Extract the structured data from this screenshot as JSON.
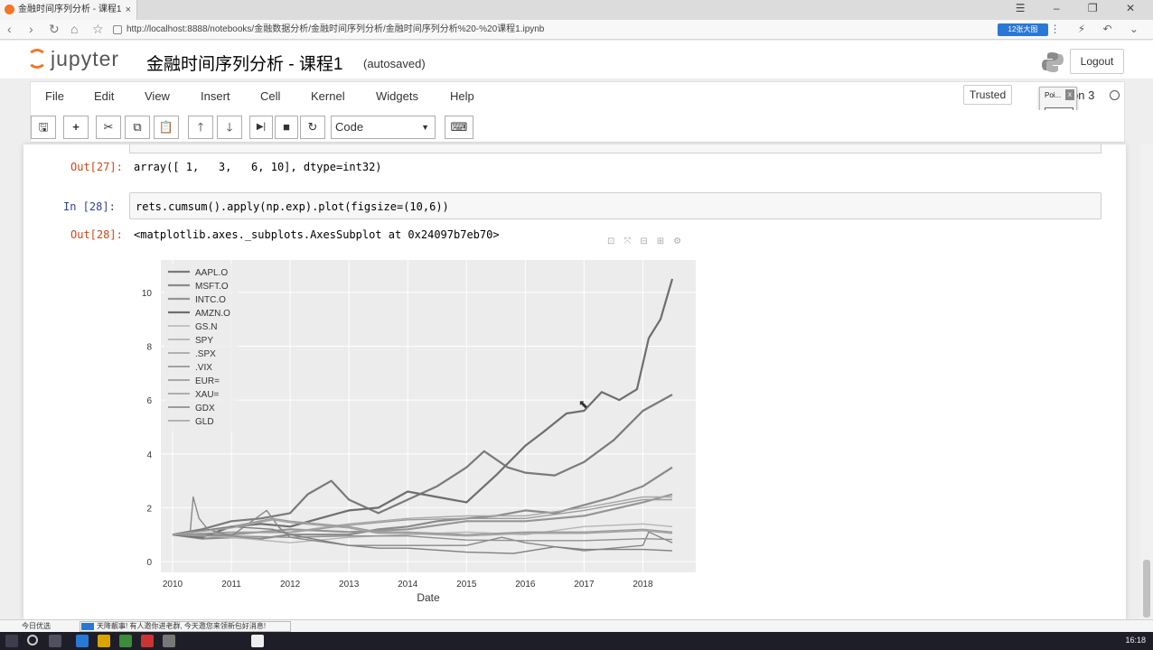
{
  "browser": {
    "tab_title": "金融时间序列分析 - 课程1",
    "tab_close": "×",
    "url": "http://localhost:8888/notebooks/金融数据分析/金融时间序列分析/金融时间序列分析%20-%20课程1.ipynb",
    "extension_label": "12张大图",
    "window_controls": "☰ – ❐ ✕",
    "addr_icons": "⋮ ⚡ ↶ ⌄"
  },
  "jupyter": {
    "logo_text": "jupyter",
    "notebook_title": "金融时间序列分析 - 课程1",
    "autosave_status": "(autosaved)",
    "logout_label": "Logout",
    "trusted_label": "Trusted",
    "kernel_name": "on 3",
    "popup_text": "Poi...",
    "popup_close": "x",
    "popup_start": "Start"
  },
  "menubar": {
    "items": [
      "File",
      "Edit",
      "View",
      "Insert",
      "Cell",
      "Kernel",
      "Widgets",
      "Help"
    ]
  },
  "toolbar": {
    "save_icon": "🖫",
    "add_icon": "+",
    "cut_icon": "✂",
    "copy_icon": "⧉",
    "paste_icon": "📋",
    "up_icon": "🡑",
    "down_icon": "🡓",
    "run_icon": "▶|",
    "stop_icon": "■",
    "restart_icon": "↻",
    "cell_type": "Code",
    "keyboard_icon": "⌨"
  },
  "cells": {
    "out27_prompt": "Out[27]:",
    "out27_text": "array([ 1,   3,   6, 10], dtype=int32)",
    "in28_prompt": "In  [28]:",
    "in28_code": "rets.cumsum().apply(np.exp).plot(figsize=(10,6))",
    "out28_prompt": "Out[28]:",
    "out28_text": "<matplotlib.axes._subplots.AxesSubplot at 0x24097b7eb70>"
  },
  "chart_data": {
    "type": "line",
    "xlabel": "Date",
    "ylabel": "",
    "x_ticks": [
      "2010",
      "2011",
      "2012",
      "2013",
      "2014",
      "2015",
      "2016",
      "2017",
      "2018"
    ],
    "y_ticks": [
      0,
      2,
      4,
      6,
      8,
      10
    ],
    "ylim": [
      -0.4,
      11.2
    ],
    "xlim": [
      2009.8,
      2018.9
    ],
    "grid": true,
    "legend_position": "top-left",
    "series": [
      {
        "name": "AAPL.O",
        "x": [
          2010.0,
          2010.5,
          2011.0,
          2011.5,
          2012.0,
          2012.3,
          2012.7,
          2013.0,
          2013.5,
          2014.0,
          2014.5,
          2015.0,
          2015.3,
          2015.7,
          2016.0,
          2016.5,
          2017.0,
          2017.5,
          2018.0,
          2018.5
        ],
        "y": [
          1.0,
          1.2,
          1.5,
          1.6,
          1.8,
          2.5,
          3.0,
          2.3,
          1.8,
          2.3,
          2.8,
          3.5,
          4.1,
          3.5,
          3.3,
          3.2,
          3.7,
          4.5,
          5.6,
          6.2
        ]
      },
      {
        "name": "MSFT.O",
        "x": [
          2010.0,
          2010.5,
          2011.0,
          2011.5,
          2012.0,
          2012.5,
          2013.0,
          2013.5,
          2014.0,
          2014.5,
          2015.0,
          2015.5,
          2016.0,
          2016.5,
          2017.0,
          2017.5,
          2018.0,
          2018.5
        ],
        "y": [
          1.0,
          0.85,
          0.9,
          0.85,
          1.0,
          1.0,
          1.0,
          1.2,
          1.3,
          1.5,
          1.6,
          1.7,
          1.9,
          1.8,
          2.1,
          2.4,
          2.8,
          3.5
        ]
      },
      {
        "name": "INTC.O",
        "x": [
          2010.0,
          2011.0,
          2012.0,
          2013.0,
          2014.0,
          2015.0,
          2016.0,
          2017.0,
          2018.0,
          2018.5
        ],
        "y": [
          1.0,
          1.0,
          1.2,
          1.1,
          1.2,
          1.5,
          1.5,
          1.7,
          2.2,
          2.5
        ]
      },
      {
        "name": "AMZN.O",
        "x": [
          2010.0,
          2010.5,
          2011.0,
          2011.5,
          2012.0,
          2012.5,
          2013.0,
          2013.5,
          2014.0,
          2014.5,
          2015.0,
          2015.5,
          2016.0,
          2016.3,
          2016.7,
          2017.0,
          2017.3,
          2017.6,
          2017.9,
          2018.1,
          2018.3,
          2018.5
        ],
        "y": [
          1.0,
          0.9,
          1.3,
          1.4,
          1.3,
          1.6,
          1.9,
          2.0,
          2.6,
          2.4,
          2.2,
          3.2,
          4.3,
          4.8,
          5.5,
          5.6,
          6.3,
          6.0,
          6.4,
          8.3,
          9.0,
          10.5
        ]
      },
      {
        "name": "GS.N",
        "x": [
          2010.0,
          2011.0,
          2012.0,
          2013.0,
          2014.0,
          2015.0,
          2016.0,
          2017.0,
          2018.0,
          2018.5
        ],
        "y": [
          1.0,
          0.9,
          0.7,
          0.9,
          1.0,
          1.1,
          1.0,
          1.3,
          1.4,
          1.3
        ]
      },
      {
        "name": "SPY",
        "x": [
          2010.0,
          2011.0,
          2012.0,
          2013.0,
          2014.0,
          2015.0,
          2016.0,
          2017.0,
          2018.0,
          2018.5
        ],
        "y": [
          1.0,
          1.1,
          1.1,
          1.4,
          1.6,
          1.7,
          1.7,
          2.0,
          2.4,
          2.4
        ]
      },
      {
        "name": ".SPX",
        "x": [
          2010.0,
          2011.0,
          2012.0,
          2013.0,
          2014.0,
          2015.0,
          2016.0,
          2017.0,
          2018.0,
          2018.5
        ],
        "y": [
          1.0,
          1.08,
          1.08,
          1.35,
          1.55,
          1.6,
          1.6,
          1.9,
          2.3,
          2.3
        ]
      },
      {
        "name": ".VIX",
        "x": [
          2010.0,
          2010.3,
          2010.35,
          2010.45,
          2010.6,
          2011.0,
          2011.6,
          2011.8,
          2012.0,
          2013.0,
          2014.0,
          2015.0,
          2015.6,
          2016.0,
          2017.0,
          2018.0,
          2018.1,
          2018.5
        ],
        "y": [
          1.0,
          1.1,
          2.4,
          1.6,
          1.2,
          0.95,
          1.9,
          1.3,
          0.9,
          0.6,
          0.6,
          0.6,
          0.9,
          0.7,
          0.4,
          0.6,
          1.1,
          0.7
        ]
      },
      {
        "name": "EUR=",
        "x": [
          2010.0,
          2011.0,
          2012.0,
          2013.0,
          2014.0,
          2015.0,
          2016.0,
          2017.0,
          2018.0,
          2018.5
        ],
        "y": [
          1.0,
          0.95,
          0.9,
          0.95,
          0.95,
          0.8,
          0.78,
          0.78,
          0.85,
          0.82
        ]
      },
      {
        "name": "XAU=",
        "x": [
          2010.0,
          2011.0,
          2011.7,
          2012.0,
          2013.0,
          2013.5,
          2014.0,
          2015.0,
          2016.0,
          2017.0,
          2018.0,
          2018.5
        ],
        "y": [
          1.0,
          1.3,
          1.6,
          1.5,
          1.3,
          1.1,
          1.1,
          1.0,
          1.1,
          1.1,
          1.2,
          1.1
        ]
      },
      {
        "name": "GDX",
        "x": [
          2010.0,
          2011.0,
          2011.7,
          2012.0,
          2013.0,
          2013.5,
          2014.0,
          2015.0,
          2015.8,
          2016.5,
          2017.0,
          2018.0,
          2018.5
        ],
        "y": [
          1.0,
          1.3,
          1.2,
          1.0,
          0.6,
          0.5,
          0.5,
          0.35,
          0.3,
          0.55,
          0.45,
          0.45,
          0.4
        ]
      },
      {
        "name": "GLD",
        "x": [
          2010.0,
          2011.0,
          2011.7,
          2012.0,
          2013.0,
          2013.5,
          2014.0,
          2015.0,
          2016.0,
          2017.0,
          2018.0,
          2018.5
        ],
        "y": [
          1.0,
          1.25,
          1.55,
          1.45,
          1.25,
          1.05,
          1.05,
          0.95,
          1.05,
          1.05,
          1.15,
          1.05
        ]
      }
    ],
    "colors": [
      "#7a7a7a",
      "#8a8a8a",
      "#959595",
      "#6e6e6e",
      "#b5b5b5",
      "#a8a8a8",
      "#9c9c9c",
      "#888888",
      "#909090",
      "#999999",
      "#7f7f7f",
      "#a0a0a0"
    ]
  },
  "statusbar": {
    "left_label": "今日优选",
    "news_text": "天降靓事! 有人邀你进老群, 今天邀您来领新包好消息!"
  },
  "taskbar": {
    "clock": "16:18"
  }
}
